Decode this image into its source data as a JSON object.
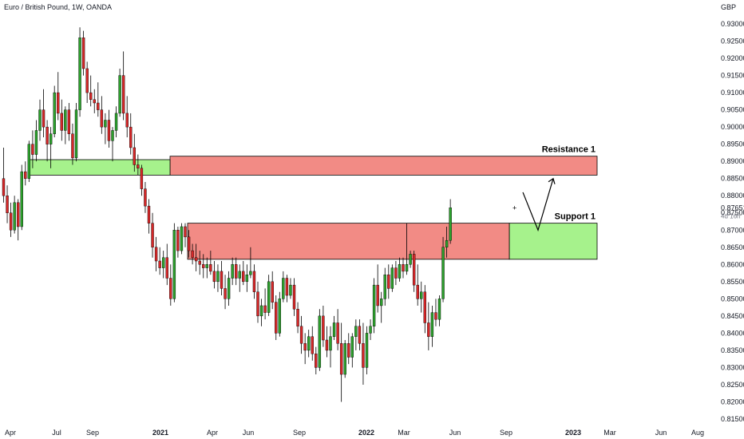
{
  "header": {
    "title": "Euro / British Pound, 1W, OANDA"
  },
  "axis": {
    "currency": "GBP",
    "last_price": "0.87651",
    "countdown": "4d 16h"
  },
  "colors": {
    "up": "#2ca02c",
    "up_fill": "#35b535",
    "down": "#d62728",
    "resistance_fill": "#f28b85",
    "support_fill": "#a6f28c",
    "border": "#000000"
  },
  "chart_data": {
    "type": "candlestick",
    "title": "Euro / British Pound, 1W, OANDA",
    "ylabel": "GBP",
    "ylim": [
      0.815,
      0.935
    ],
    "ytick_labels": [
      "0.93000",
      "0.92500",
      "0.92000",
      "0.91500",
      "0.91000",
      "0.90500",
      "0.90000",
      "0.89500",
      "0.89000",
      "0.88500",
      "0.88000",
      "0.87500",
      "0.87000",
      "0.86500",
      "0.86000",
      "0.85500",
      "0.85000",
      "0.84500",
      "0.84000",
      "0.83500",
      "0.83000",
      "0.82500",
      "0.82000",
      "0.81500"
    ],
    "ytick_values": [
      0.93,
      0.925,
      0.92,
      0.915,
      0.91,
      0.905,
      0.9,
      0.895,
      0.89,
      0.885,
      0.88,
      0.875,
      0.87,
      0.865,
      0.86,
      0.855,
      0.85,
      0.845,
      0.84,
      0.835,
      0.83,
      0.825,
      0.82,
      0.815
    ],
    "xtick_labels": [
      "Apr",
      "Jul",
      "Sep",
      "2021",
      "Apr",
      "Jun",
      "Sep",
      "2022",
      "Mar",
      "Jun",
      "Sep",
      "2023",
      "Mar",
      "Jun",
      "Aug"
    ],
    "xtick_bold": [
      false,
      false,
      false,
      true,
      false,
      false,
      false,
      true,
      false,
      false,
      false,
      true,
      false,
      false,
      false
    ],
    "zones": [
      {
        "label": "Resistance 1",
        "top": 0.8915,
        "bottom": 0.886,
        "kind": "resistance"
      },
      {
        "label": "Support 1",
        "top": 0.872,
        "bottom": 0.8615,
        "kind": "support"
      },
      {
        "label": "",
        "top": 0.8905,
        "bottom": 0.886,
        "kind": "support"
      },
      {
        "label": "",
        "top": 0.872,
        "bottom": 0.8615,
        "kind": "resistance"
      }
    ],
    "candles": [
      [
        0.885,
        0.894,
        0.878,
        0.88
      ],
      [
        0.88,
        0.883,
        0.872,
        0.875
      ],
      [
        0.875,
        0.878,
        0.868,
        0.87
      ],
      [
        0.87,
        0.88,
        0.869,
        0.878
      ],
      [
        0.878,
        0.879,
        0.867,
        0.871
      ],
      [
        0.871,
        0.889,
        0.87,
        0.887
      ],
      [
        0.887,
        0.89,
        0.883,
        0.885
      ],
      [
        0.885,
        0.896,
        0.884,
        0.895
      ],
      [
        0.895,
        0.899,
        0.888,
        0.892
      ],
      [
        0.892,
        0.902,
        0.89,
        0.899
      ],
      [
        0.899,
        0.908,
        0.896,
        0.905
      ],
      [
        0.905,
        0.911,
        0.897,
        0.9
      ],
      [
        0.9,
        0.902,
        0.89,
        0.895
      ],
      [
        0.895,
        0.9,
        0.888,
        0.898
      ],
      [
        0.898,
        0.912,
        0.897,
        0.91
      ],
      [
        0.91,
        0.916,
        0.902,
        0.904
      ],
      [
        0.904,
        0.908,
        0.896,
        0.899
      ],
      [
        0.899,
        0.906,
        0.895,
        0.905
      ],
      [
        0.905,
        0.907,
        0.896,
        0.898
      ],
      [
        0.898,
        0.901,
        0.889,
        0.891
      ],
      [
        0.891,
        0.907,
        0.89,
        0.905
      ],
      [
        0.905,
        0.929,
        0.903,
        0.926
      ],
      [
        0.926,
        0.928,
        0.915,
        0.917
      ],
      [
        0.917,
        0.919,
        0.907,
        0.91
      ],
      [
        0.91,
        0.915,
        0.906,
        0.908
      ],
      [
        0.908,
        0.911,
        0.904,
        0.907
      ],
      [
        0.907,
        0.913,
        0.903,
        0.905
      ],
      [
        0.905,
        0.909,
        0.898,
        0.9
      ],
      [
        0.9,
        0.904,
        0.895,
        0.902
      ],
      [
        0.902,
        0.905,
        0.894,
        0.896
      ],
      [
        0.896,
        0.9,
        0.89,
        0.899
      ],
      [
        0.899,
        0.906,
        0.897,
        0.904
      ],
      [
        0.904,
        0.917,
        0.903,
        0.915
      ],
      [
        0.915,
        0.922,
        0.902,
        0.904
      ],
      [
        0.904,
        0.909,
        0.897,
        0.9
      ],
      [
        0.9,
        0.904,
        0.892,
        0.894
      ],
      [
        0.894,
        0.898,
        0.887,
        0.889
      ],
      [
        0.889,
        0.892,
        0.886,
        0.888
      ],
      [
        0.888,
        0.889,
        0.88,
        0.882
      ],
      [
        0.882,
        0.884,
        0.875,
        0.877
      ],
      [
        0.877,
        0.879,
        0.869,
        0.872
      ],
      [
        0.872,
        0.875,
        0.862,
        0.865
      ],
      [
        0.865,
        0.868,
        0.858,
        0.861
      ],
      [
        0.861,
        0.865,
        0.857,
        0.859
      ],
      [
        0.859,
        0.864,
        0.856,
        0.862
      ],
      [
        0.862,
        0.866,
        0.854,
        0.856
      ],
      [
        0.856,
        0.86,
        0.848,
        0.85
      ],
      [
        0.85,
        0.872,
        0.849,
        0.87
      ],
      [
        0.87,
        0.871,
        0.862,
        0.864
      ],
      [
        0.864,
        0.872,
        0.863,
        0.871
      ],
      [
        0.871,
        0.872,
        0.865,
        0.868
      ],
      [
        0.868,
        0.87,
        0.862,
        0.864
      ],
      [
        0.864,
        0.866,
        0.86,
        0.862
      ],
      [
        0.862,
        0.866,
        0.858,
        0.861
      ],
      [
        0.861,
        0.864,
        0.857,
        0.86
      ],
      [
        0.86,
        0.863,
        0.856,
        0.859
      ],
      [
        0.859,
        0.862,
        0.856,
        0.86
      ],
      [
        0.86,
        0.864,
        0.857,
        0.858
      ],
      [
        0.858,
        0.861,
        0.853,
        0.855
      ],
      [
        0.855,
        0.86,
        0.852,
        0.858
      ],
      [
        0.858,
        0.861,
        0.851,
        0.853
      ],
      [
        0.853,
        0.857,
        0.847,
        0.85
      ],
      [
        0.85,
        0.858,
        0.848,
        0.856
      ],
      [
        0.856,
        0.862,
        0.854,
        0.86
      ],
      [
        0.86,
        0.862,
        0.854,
        0.856
      ],
      [
        0.856,
        0.86,
        0.852,
        0.858
      ],
      [
        0.858,
        0.861,
        0.854,
        0.855
      ],
      [
        0.855,
        0.86,
        0.852,
        0.857
      ],
      [
        0.857,
        0.865,
        0.856,
        0.858
      ],
      [
        0.858,
        0.86,
        0.85,
        0.852
      ],
      [
        0.852,
        0.855,
        0.843,
        0.845
      ],
      [
        0.845,
        0.85,
        0.842,
        0.848
      ],
      [
        0.848,
        0.853,
        0.844,
        0.846
      ],
      [
        0.846,
        0.857,
        0.845,
        0.855
      ],
      [
        0.855,
        0.858,
        0.847,
        0.849
      ],
      [
        0.849,
        0.851,
        0.838,
        0.84
      ],
      [
        0.84,
        0.852,
        0.839,
        0.85
      ],
      [
        0.85,
        0.858,
        0.849,
        0.856
      ],
      [
        0.856,
        0.857,
        0.849,
        0.851
      ],
      [
        0.851,
        0.856,
        0.85,
        0.854
      ],
      [
        0.854,
        0.856,
        0.845,
        0.847
      ],
      [
        0.847,
        0.849,
        0.84,
        0.842
      ],
      [
        0.842,
        0.845,
        0.834,
        0.837
      ],
      [
        0.837,
        0.84,
        0.831,
        0.835
      ],
      [
        0.835,
        0.841,
        0.833,
        0.839
      ],
      [
        0.839,
        0.842,
        0.832,
        0.834
      ],
      [
        0.834,
        0.836,
        0.828,
        0.83
      ],
      [
        0.83,
        0.847,
        0.829,
        0.845
      ],
      [
        0.845,
        0.848,
        0.836,
        0.838
      ],
      [
        0.838,
        0.842,
        0.833,
        0.835
      ],
      [
        0.835,
        0.842,
        0.83,
        0.839
      ],
      [
        0.839,
        0.845,
        0.838,
        0.843
      ],
      [
        0.843,
        0.847,
        0.835,
        0.837
      ],
      [
        0.837,
        0.843,
        0.82,
        0.828
      ],
      [
        0.828,
        0.838,
        0.827,
        0.837
      ],
      [
        0.837,
        0.84,
        0.831,
        0.833
      ],
      [
        0.833,
        0.84,
        0.83,
        0.839
      ],
      [
        0.839,
        0.844,
        0.835,
        0.842
      ],
      [
        0.842,
        0.844,
        0.835,
        0.837
      ],
      [
        0.837,
        0.843,
        0.825,
        0.83
      ],
      [
        0.83,
        0.842,
        0.828,
        0.84
      ],
      [
        0.84,
        0.844,
        0.838,
        0.842
      ],
      [
        0.842,
        0.856,
        0.84,
        0.854
      ],
      [
        0.854,
        0.86,
        0.846,
        0.848
      ],
      [
        0.848,
        0.852,
        0.843,
        0.85
      ],
      [
        0.85,
        0.859,
        0.848,
        0.857
      ],
      [
        0.857,
        0.86,
        0.85,
        0.853
      ],
      [
        0.853,
        0.86,
        0.852,
        0.859
      ],
      [
        0.859,
        0.861,
        0.854,
        0.856
      ],
      [
        0.856,
        0.862,
        0.855,
        0.86
      ],
      [
        0.86,
        0.862,
        0.856,
        0.858
      ],
      [
        0.858,
        0.872,
        0.857,
        0.86
      ],
      [
        0.86,
        0.864,
        0.859,
        0.863
      ],
      [
        0.863,
        0.864,
        0.852,
        0.854
      ],
      [
        0.854,
        0.86,
        0.848,
        0.85
      ],
      [
        0.85,
        0.855,
        0.846,
        0.852
      ],
      [
        0.852,
        0.854,
        0.84,
        0.843
      ],
      [
        0.843,
        0.849,
        0.835,
        0.839
      ],
      [
        0.839,
        0.848,
        0.836,
        0.846
      ],
      [
        0.846,
        0.85,
        0.842,
        0.844
      ],
      [
        0.844,
        0.851,
        0.842,
        0.85
      ],
      [
        0.85,
        0.868,
        0.849,
        0.865
      ],
      [
        0.865,
        0.871,
        0.862,
        0.867
      ],
      [
        0.867,
        0.879,
        0.866,
        0.8765
      ]
    ],
    "projection": [
      [
        0.878,
        0.87
      ],
      [
        0.869,
        0.885
      ]
    ]
  }
}
